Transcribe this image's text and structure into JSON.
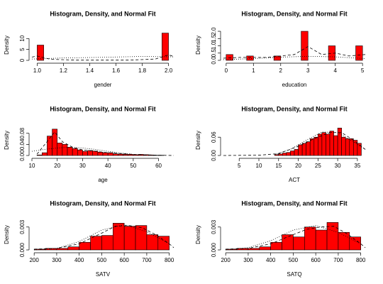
{
  "chart_data": [
    {
      "type": "histogram",
      "title": "Histogram, Density, and Normal Fit",
      "xlabel": "gender",
      "ylabel": "Density",
      "color": "#ff0000",
      "bins": [
        1.0,
        1.05,
        1.1,
        1.15,
        1.2,
        1.25,
        1.3,
        1.35,
        1.4,
        1.45,
        1.5,
        1.55,
        1.6,
        1.65,
        1.7,
        1.75,
        1.8,
        1.85,
        1.9,
        1.95,
        2.0
      ],
      "values": [
        7,
        0,
        0,
        0,
        0,
        0,
        0,
        0,
        0,
        0,
        0,
        0,
        0,
        0,
        0,
        0,
        0,
        0,
        0,
        12.5
      ],
      "xlim": [
        0.96,
        2.04
      ],
      "ylim": [
        0,
        14
      ],
      "xticks": [
        {
          "value": 1.0,
          "label": "1.0"
        },
        {
          "value": 1.2,
          "label": "1.2"
        },
        {
          "value": 1.4,
          "label": "1.4"
        },
        {
          "value": 1.6,
          "label": "1.6"
        },
        {
          "value": 1.8,
          "label": "1.8"
        },
        {
          "value": 2.0,
          "label": "2.0"
        }
      ],
      "yticks": [
        0,
        5,
        10
      ],
      "density": {
        "x": [
          0.96,
          1.0,
          1.1,
          1.3,
          1.5,
          1.7,
          1.9,
          2.0,
          2.04
        ],
        "y": [
          1.5,
          2,
          0.5,
          0.1,
          0.1,
          0.1,
          0.6,
          2.5,
          1.8
        ]
      },
      "normal_fit": {
        "x": [
          0.96,
          1.2,
          1.5,
          1.8,
          2.04
        ],
        "y": [
          0.6,
          1.1,
          1.4,
          1.8,
          1.6
        ]
      }
    },
    {
      "type": "histogram",
      "title": "Histogram, Density, and Normal Fit",
      "xlabel": "education",
      "ylabel": "Density",
      "color": "#ff0000",
      "bins": [
        0,
        0.25,
        0.5,
        0.75,
        1,
        1.25,
        1.5,
        1.75,
        2,
        2.25,
        2.5,
        2.75,
        3,
        3.25,
        3.5,
        3.75,
        4,
        4.25,
        4.5,
        4.75,
        5
      ],
      "values": [
        0.4,
        0,
        0,
        0.3,
        0,
        0,
        0,
        0.3,
        0,
        0,
        0,
        2.0,
        0,
        0,
        0,
        1.0,
        0,
        0,
        0,
        1.0
      ],
      "xlim": [
        -0.1,
        5.1
      ],
      "ylim": [
        0,
        2.1
      ],
      "xticks": [
        0,
        1,
        2,
        3,
        4,
        5
      ],
      "yticks": [
        {
          "value": 0,
          "label": "0.0"
        },
        {
          "value": 0.5,
          "label": "0.5"
        },
        {
          "value": 1.0,
          "label": "1.0"
        },
        {
          "value": 1.5,
          "label": "1.5"
        },
        {
          "value": 2.0,
          "label": "2.0"
        }
      ],
      "density": {
        "x": [
          -0.1,
          0.5,
          1.5,
          2.5,
          3,
          3.5,
          4,
          4.5,
          5.1
        ],
        "y": [
          0.15,
          0.2,
          0.2,
          0.4,
          0.95,
          0.4,
          0.5,
          0.3,
          0.4
        ]
      },
      "normal_fit": {
        "x": [
          -0.1,
          1,
          2,
          3,
          4,
          5.1
        ],
        "y": [
          0.05,
          0.12,
          0.22,
          0.28,
          0.24,
          0.12
        ]
      }
    },
    {
      "type": "histogram",
      "title": "Histogram, Density, and Normal Fit",
      "xlabel": "age",
      "ylabel": "Density",
      "color": "#ff0000",
      "bins": [
        12,
        14,
        16,
        18,
        20,
        22,
        24,
        26,
        28,
        30,
        32,
        34,
        36,
        38,
        40,
        42,
        44,
        46,
        48,
        50,
        52,
        54,
        56,
        58,
        60,
        62,
        64
      ],
      "values": [
        0.002,
        0.01,
        0.07,
        0.095,
        0.045,
        0.04,
        0.03,
        0.025,
        0.02,
        0.015,
        0.018,
        0.016,
        0.012,
        0.01,
        0.01,
        0.006,
        0.005,
        0.004,
        0.004,
        0.003,
        0.004,
        0.003,
        0.002,
        0.001,
        0.001,
        0
      ],
      "xlim": [
        10,
        66
      ],
      "ylim": [
        0,
        0.11
      ],
      "xticks": [
        10,
        20,
        30,
        40,
        50,
        60
      ],
      "yticks": [
        {
          "value": 0,
          "label": "0.00"
        },
        {
          "value": 0.04,
          "label": "0.04"
        },
        {
          "value": 0.08,
          "label": "0.08"
        }
      ],
      "density": {
        "x": [
          12,
          16,
          19,
          22,
          26,
          30,
          40,
          50,
          60,
          66
        ],
        "y": [
          0.005,
          0.05,
          0.085,
          0.05,
          0.03,
          0.02,
          0.01,
          0.004,
          0.001,
          0
        ]
      },
      "normal_fit": {
        "x": [
          10,
          15,
          20,
          25,
          30,
          35,
          40,
          45,
          50
        ],
        "y": [
          0.015,
          0.022,
          0.027,
          0.03,
          0.027,
          0.022,
          0.015,
          0.009,
          0.004
        ]
      }
    },
    {
      "type": "histogram",
      "title": "Histogram, Density, and Normal Fit",
      "xlabel": "ACT",
      "ylabel": "Density",
      "color": "#ff0000",
      "bins": [
        14,
        15,
        16,
        17,
        18,
        19,
        20,
        21,
        22,
        23,
        24,
        25,
        26,
        27,
        28,
        29,
        30,
        31,
        32,
        33,
        34,
        35,
        36
      ],
      "values": [
        0.003,
        0.005,
        0.008,
        0.01,
        0.015,
        0.02,
        0.035,
        0.04,
        0.045,
        0.055,
        0.06,
        0.07,
        0.075,
        0.07,
        0.08,
        0.065,
        0.09,
        0.06,
        0.055,
        0.055,
        0.05,
        0.04
      ],
      "xlim": [
        1,
        37
      ],
      "ylim": [
        0,
        0.1
      ],
      "xticks": [
        5,
        10,
        15,
        20,
        25,
        30,
        35
      ],
      "yticks": [
        {
          "value": 0,
          "label": "0.00"
        },
        {
          "value": 0.06,
          "label": "0.06"
        }
      ],
      "density": {
        "x": [
          1,
          10,
          15,
          20,
          24,
          28,
          31,
          34,
          37
        ],
        "y": [
          0,
          0.001,
          0.006,
          0.03,
          0.055,
          0.075,
          0.075,
          0.05,
          0.02
        ]
      },
      "normal_fit": {
        "x": [
          14,
          18,
          22,
          26,
          30,
          34,
          37
        ],
        "y": [
          0.004,
          0.02,
          0.05,
          0.077,
          0.075,
          0.045,
          0.02
        ]
      }
    },
    {
      "type": "histogram",
      "title": "Histogram, Density, and Normal Fit",
      "xlabel": "SATV",
      "ylabel": "Density",
      "color": "#ff0000",
      "bins": [
        200,
        250,
        300,
        350,
        400,
        450,
        500,
        550,
        600,
        650,
        700,
        750,
        800
      ],
      "values": [
        0.0001,
        0.0002,
        0.0002,
        0.0004,
        0.001,
        0.0018,
        0.0019,
        0.0035,
        0.0031,
        0.0032,
        0.002,
        0.0018
      ],
      "xlim": [
        190,
        820
      ],
      "ylim": [
        0,
        0.004
      ],
      "xticks": [
        200,
        300,
        400,
        500,
        600,
        700,
        800
      ],
      "yticks": [
        {
          "value": 0,
          "label": "0.000"
        },
        {
          "value": 0.003,
          "label": "0.003"
        }
      ],
      "density": {
        "x": [
          200,
          300,
          400,
          500,
          560,
          620,
          680,
          740,
          800,
          820
        ],
        "y": [
          0.0001,
          0.0002,
          0.0008,
          0.0022,
          0.0031,
          0.0032,
          0.0029,
          0.002,
          0.0008,
          0.0003
        ]
      },
      "normal_fit": {
        "x": [
          200,
          300,
          400,
          500,
          600,
          700,
          800
        ],
        "y": [
          0,
          0.0002,
          0.0011,
          0.0026,
          0.0033,
          0.0024,
          0.0008
        ]
      }
    },
    {
      "type": "histogram",
      "title": "Histogram, Density, and Normal Fit",
      "xlabel": "SATQ",
      "ylabel": "Density",
      "color": "#ff0000",
      "bins": [
        200,
        250,
        300,
        350,
        400,
        450,
        500,
        550,
        600,
        650,
        700,
        750,
        800
      ],
      "values": [
        0.0001,
        0.0002,
        0.0002,
        0.0004,
        0.001,
        0.002,
        0.0017,
        0.003,
        0.0026,
        0.0036,
        0.0023,
        0.0017
      ],
      "xlim": [
        190,
        820
      ],
      "ylim": [
        0,
        0.004
      ],
      "xticks": [
        200,
        300,
        400,
        500,
        600,
        700,
        800
      ],
      "yticks": [
        {
          "value": 0,
          "label": "0.000"
        },
        {
          "value": 0.003,
          "label": "0.003"
        }
      ],
      "density": {
        "x": [
          200,
          300,
          400,
          500,
          560,
          620,
          680,
          740,
          800,
          820
        ],
        "y": [
          0.0001,
          0.0002,
          0.0008,
          0.002,
          0.0027,
          0.003,
          0.0031,
          0.0021,
          0.0008,
          0.0003
        ]
      },
      "normal_fit": {
        "x": [
          200,
          300,
          400,
          500,
          600,
          700,
          800
        ],
        "y": [
          0,
          0.0003,
          0.0012,
          0.0026,
          0.0032,
          0.0023,
          0.0008
        ]
      }
    }
  ]
}
